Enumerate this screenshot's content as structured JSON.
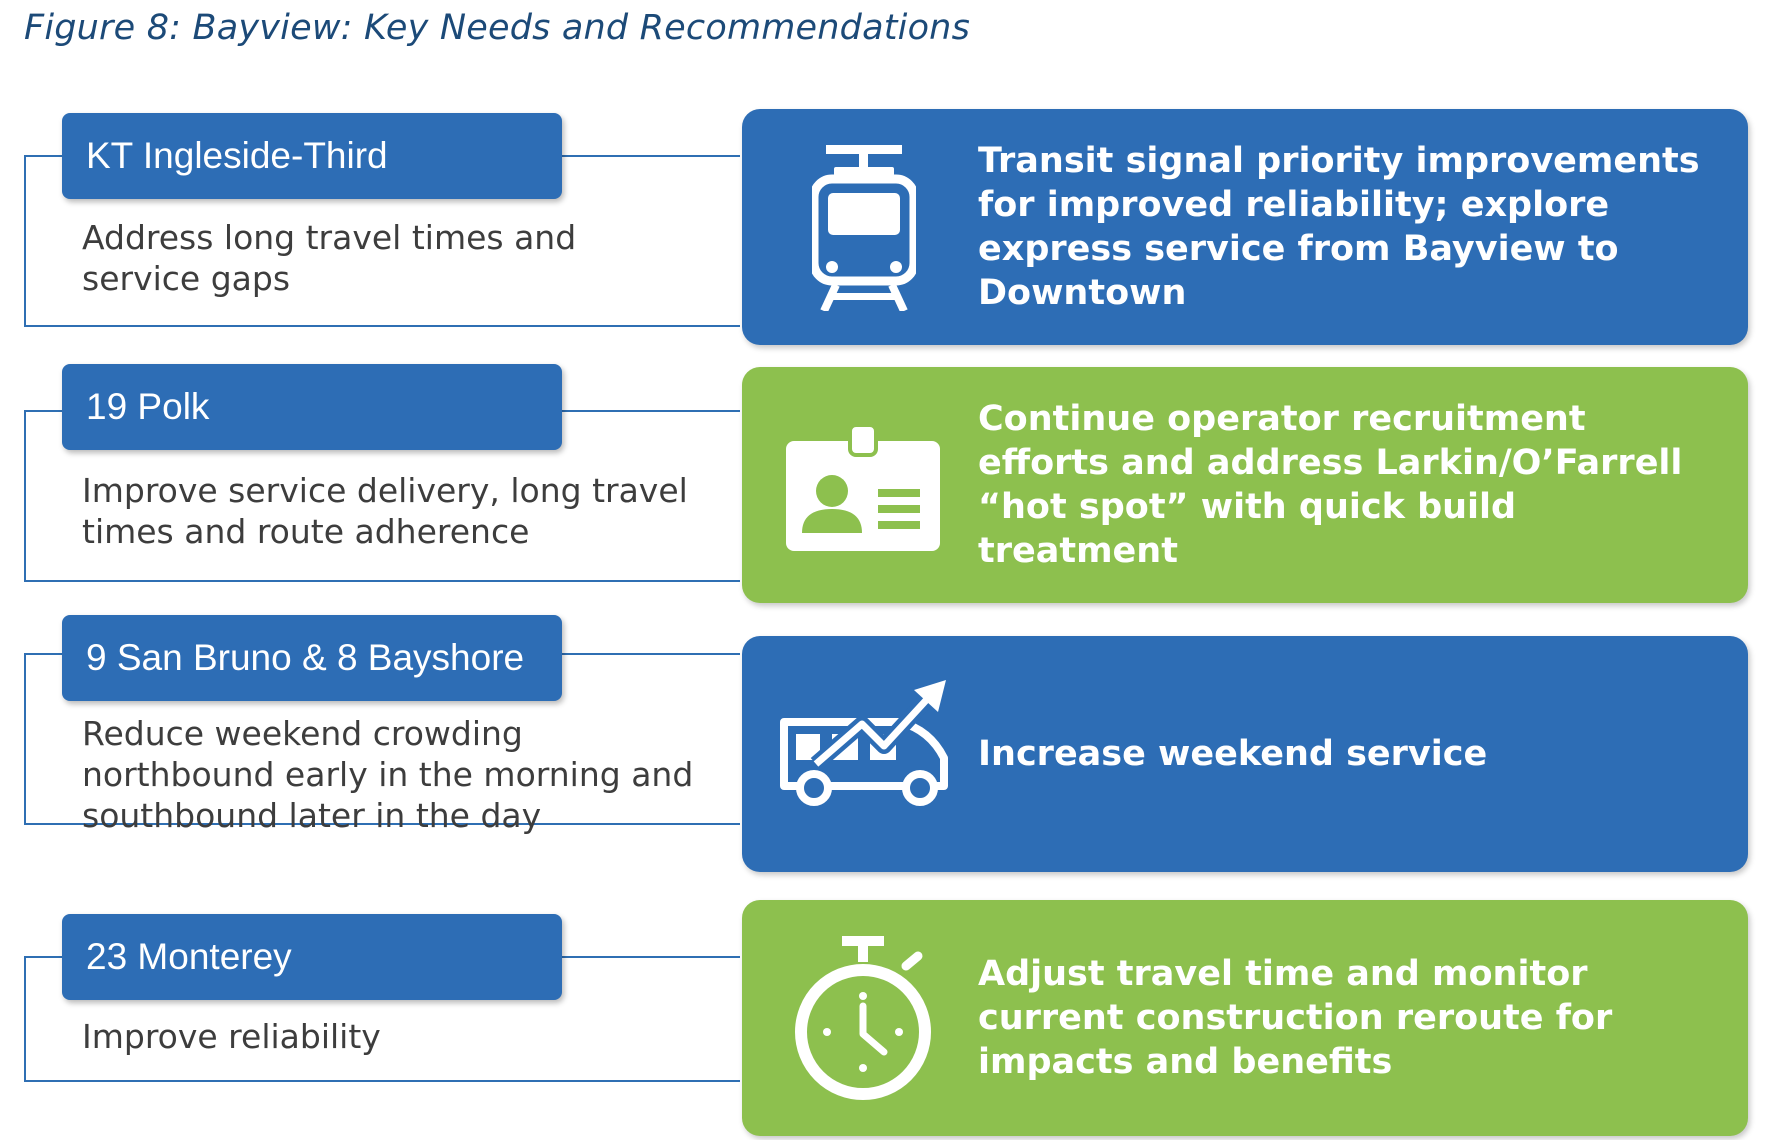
{
  "figure": {
    "title": "Figure 8: Bayview: Key Needs and Recommendations"
  },
  "colors": {
    "blue": "#2d6db5",
    "green": "#8dc04e",
    "line": "#2f6fb3",
    "title": "#1c4a78",
    "text": "#3d3d3d"
  },
  "rows": [
    {
      "route": "KT Ingleside-Third",
      "need": "Address long travel times and service gaps",
      "recommendation": "Transit signal priority improvements for improved reliability; explore express service from Bayview to Downtown",
      "card_color": "blue",
      "icon": "light-rail-train-icon"
    },
    {
      "route": "19 Polk",
      "need": "Improve service delivery, long travel times and route adherence",
      "recommendation": "Continue operator recruitment efforts and address Larkin/O’Farrell “hot spot” with quick build treatment",
      "card_color": "green",
      "icon": "id-badge-icon"
    },
    {
      "route": "9 San Bruno & 8 Bayshore",
      "need": "Reduce weekend crowding northbound early in the morning and southbound later in the day",
      "recommendation": "Increase weekend service",
      "card_color": "blue",
      "icon": "bus-trend-up-icon"
    },
    {
      "route": "23 Monterey",
      "need": "Improve reliability",
      "recommendation": "Adjust travel time and monitor current construction reroute for impacts and benefits",
      "card_color": "green",
      "icon": "stopwatch-icon"
    }
  ]
}
